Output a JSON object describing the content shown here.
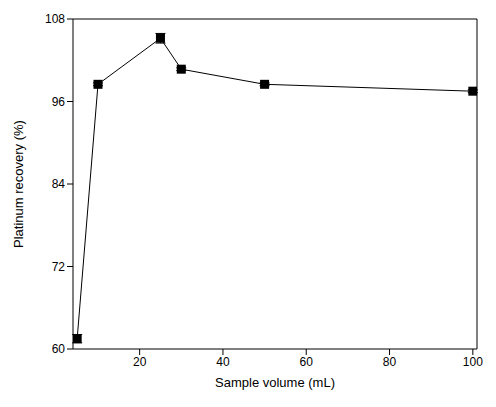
{
  "chart_data": {
    "type": "line",
    "x_label": "Sample volume (mL)",
    "y_label": "Platinum recovery (%)",
    "x": [
      5,
      10,
      25,
      30,
      50,
      100
    ],
    "values": [
      61.5,
      98.5,
      105.2,
      100.7,
      98.5,
      97.5
    ],
    "errors": [
      0.6,
      0.2,
      0.7,
      0.2,
      0.2,
      0.2
    ],
    "color": "#000000",
    "marker": "square",
    "xlim": [
      4,
      101
    ],
    "xticks": [
      20,
      40,
      60,
      80,
      100
    ],
    "ylim": [
      60,
      108
    ],
    "yticks": [
      60,
      72,
      84,
      96,
      108
    ],
    "grid": false
  }
}
